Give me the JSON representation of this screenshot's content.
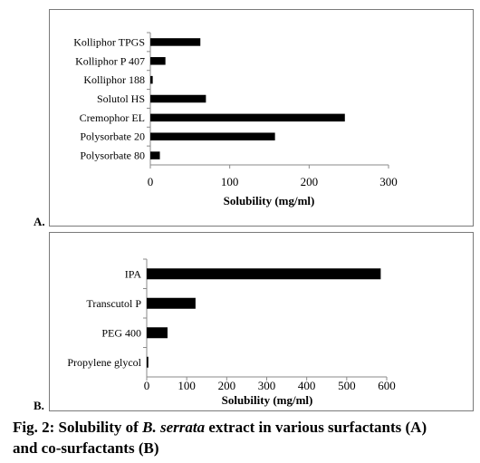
{
  "panels": {
    "a_label": "A.",
    "b_label": "B."
  },
  "caption": {
    "line1_prefix": "Fig. 2: Solubility of ",
    "line1_italic": "B. serrata",
    "line1_suffix": " extract in various surfactants (A)",
    "line2": "and co-surfactants (B)"
  },
  "chart_data": [
    {
      "type": "bar",
      "orientation": "horizontal",
      "categories": [
        "Kolliphor TPGS",
        "Kolliphor P 407",
        "Kolliphor 188",
        "Solutol HS",
        "Cremophor EL",
        "Polysorbate 20",
        "Polysorbate 80"
      ],
      "values": [
        63,
        19,
        3,
        70,
        245,
        157,
        12
      ],
      "xlabel": "Solubility (mg/ml)",
      "ylabel": "",
      "xlim": [
        0,
        300
      ],
      "xticks": [
        "0",
        "100",
        "200",
        "300"
      ],
      "grid": false,
      "bar_color": "#000000"
    },
    {
      "type": "bar",
      "orientation": "horizontal",
      "categories": [
        "IPA",
        "Transcutol P",
        "PEG 400",
        "Propylene glycol"
      ],
      "values": [
        585,
        122,
        52,
        4
      ],
      "xlabel": "Solubility (mg/ml)",
      "ylabel": "",
      "xlim": [
        0,
        600
      ],
      "xticks": [
        "0",
        "100",
        "200",
        "300",
        "400",
        "500",
        "600"
      ],
      "grid": false,
      "bar_color": "#000000"
    }
  ]
}
